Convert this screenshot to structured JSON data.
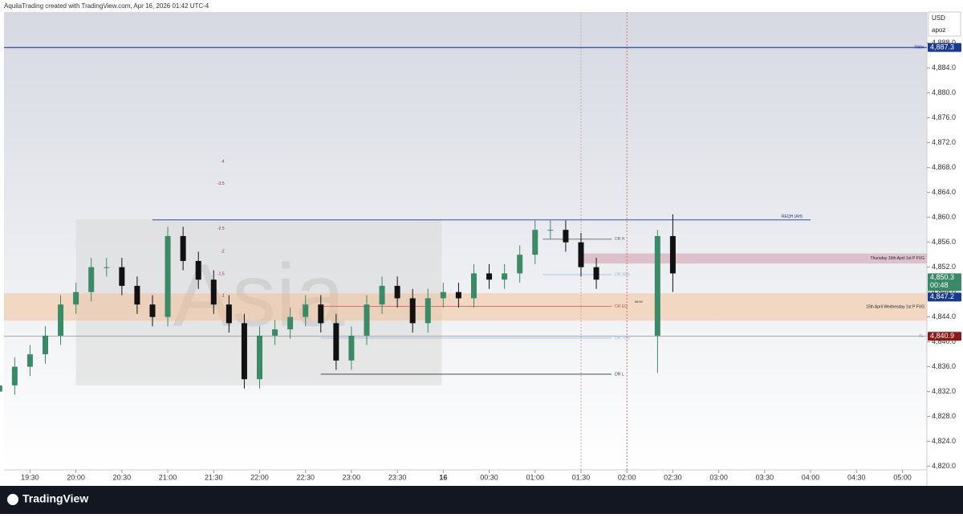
{
  "header": "AquilaTrading created with TradingView.com, Apr 16, 2026 01:42 UTC-4",
  "currency": "USD",
  "account": "apoz",
  "brand": "TradingView",
  "chart_data": {
    "type": "candlestick",
    "x": [
      "19:10",
      "19:20",
      "19:30",
      "19:40",
      "19:50",
      "20:00",
      "20:10",
      "20:20",
      "20:30",
      "20:40",
      "20:50",
      "21:00",
      "21:10",
      "21:20",
      "21:30",
      "21:40",
      "21:50",
      "22:00",
      "22:10",
      "22:20",
      "22:30",
      "22:40",
      "22:50",
      "23:00",
      "23:10",
      "23:20",
      "23:30",
      "23:40",
      "23:50",
      "00:00",
      "00:10",
      "00:20",
      "00:30",
      "00:40",
      "00:50",
      "01:00",
      "01:10",
      "01:20",
      "01:30",
      "01:40",
      "02:20",
      "02:30"
    ],
    "open": [
      4832,
      4833,
      4836,
      4838,
      4841,
      4846,
      4848,
      4852,
      4852,
      4849,
      4846,
      4844,
      4857,
      4853,
      4850,
      4846,
      4843,
      4834,
      4841,
      4842,
      4844,
      4846,
      4843,
      4837,
      4841,
      4846,
      4849,
      4847,
      4843,
      4847,
      4848,
      4847,
      4851,
      4850,
      4851,
      4854,
      4858,
      4858,
      4856,
      4852,
      4841,
      4857
    ],
    "high": [
      4834.5,
      4837.5,
      4839.5,
      4842.5,
      4847.5,
      4849.5,
      4853.5,
      4853.5,
      4853.5,
      4850.5,
      4847.5,
      4858.5,
      4858.5,
      4854.5,
      4851.5,
      4847.5,
      4844.5,
      4842.5,
      4843.5,
      4845.5,
      4847.5,
      4847.5,
      4844.5,
      4842.5,
      4847.5,
      4850.5,
      4850.5,
      4848.5,
      4848.5,
      4849.5,
      4849.5,
      4852.5,
      4852.5,
      4852.5,
      4855.5,
      4859.5,
      4859.5,
      4859.5,
      4857.5,
      4853.5,
      4858,
      4860.5
    ],
    "low": [
      4830.5,
      4831.5,
      4834.5,
      4836.5,
      4839.5,
      4844.5,
      4846.5,
      4850.5,
      4847.5,
      4844.5,
      4842.5,
      4842.5,
      4851.5,
      4848.5,
      4844.5,
      4841.5,
      4832.5,
      4832.5,
      4839.5,
      4840.5,
      4842.5,
      4841.5,
      4835.5,
      4835.5,
      4839.5,
      4844.5,
      4845.5,
      4841.5,
      4841.5,
      4845.5,
      4845.5,
      4845.5,
      4848.5,
      4848.5,
      4849.5,
      4852.5,
      4856.5,
      4854.5,
      4850.5,
      4848.5,
      4835,
      4848
    ],
    "close": [
      4833,
      4836,
      4838,
      4841,
      4846,
      4848,
      4852,
      4852,
      4849,
      4846,
      4844,
      4857,
      4853,
      4850,
      4846,
      4843,
      4834,
      4841,
      4842,
      4844,
      4846,
      4843,
      4837,
      4841,
      4846,
      4849,
      4847,
      4843,
      4847,
      4848,
      4847,
      4851,
      4850,
      4851,
      4854,
      4858,
      4858,
      4856,
      4852,
      4850,
      4857,
      4851
    ],
    "up_color": "#3b8a67",
    "down_color": "#111111",
    "xlim": [
      "19:13",
      "05:16"
    ],
    "xticks": [
      {
        "value": "19:30",
        "label": "19:30"
      },
      {
        "value": "20:00",
        "label": "20:00"
      },
      {
        "value": "20:30",
        "label": "20:30"
      },
      {
        "value": "21:00",
        "label": "21:00"
      },
      {
        "value": "21:30",
        "label": "21:30"
      },
      {
        "value": "22:00",
        "label": "22:00"
      },
      {
        "value": "22:30",
        "label": "22:30"
      },
      {
        "value": "23:00",
        "label": "23:00"
      },
      {
        "value": "23:30",
        "label": "23:30"
      },
      {
        "value": "00:00",
        "label": "16"
      },
      {
        "value": "00:30",
        "label": "00:30"
      },
      {
        "value": "01:00",
        "label": "01:00"
      },
      {
        "value": "01:30",
        "label": "01:30"
      },
      {
        "value": "02:00",
        "label": "02:00"
      },
      {
        "value": "02:30",
        "label": "02:30"
      },
      {
        "value": "03:00",
        "label": "03:00"
      },
      {
        "value": "03:30",
        "label": "03:30"
      },
      {
        "value": "04:00",
        "label": "04:00"
      },
      {
        "value": "04:30",
        "label": "04:30"
      },
      {
        "value": "05:00",
        "label": "05:00"
      }
    ],
    "ylim": [
      4817.5,
      4893
    ],
    "yticks": [
      {
        "value": 4820,
        "label": "4,820.0"
      },
      {
        "value": 4824,
        "label": "4,824.0"
      },
      {
        "value": 4828,
        "label": "4,828.0"
      },
      {
        "value": 4832,
        "label": "4,832.0"
      },
      {
        "value": 4836,
        "label": "4,836.0"
      },
      {
        "value": 4840,
        "label": "4,840.0"
      },
      {
        "value": 4844,
        "label": "4,844.0"
      },
      {
        "value": 4848,
        "label": "4,848.0"
      },
      {
        "value": 4852,
        "label": "4,852.0"
      },
      {
        "value": 4856,
        "label": "4,856.0"
      },
      {
        "value": 4860,
        "label": "4,860.0"
      },
      {
        "value": 4864,
        "label": "4,864.0"
      },
      {
        "value": 4868,
        "label": "4,868.0"
      },
      {
        "value": 4872,
        "label": "4,872.0"
      },
      {
        "value": 4876,
        "label": "4,876.0"
      },
      {
        "value": 4880,
        "label": "4,880.0"
      },
      {
        "value": 4884,
        "label": "4,884.0"
      },
      {
        "value": 4888,
        "label": "4,888.0"
      }
    ],
    "session": {
      "label": "Asia",
      "start": "20:00",
      "end": "23:59",
      "top": 4859.7,
      "bottom": 4833
    },
    "zones": [
      {
        "label": "Thursday 16th April 1st P FVG",
        "low": 4852.6,
        "high": 4854.2,
        "start": "01:30",
        "end": "05:16",
        "color": "#c98a9a"
      },
      {
        "label": "15th April Wednesday 1st P FVG",
        "low": 4843.4,
        "high": 4847.8,
        "start": "19:13",
        "end": "05:16",
        "color": "#f3b988"
      }
    ],
    "levels": [
      {
        "name": "PWH",
        "value": 4887.3,
        "start": "19:13",
        "end": "05:16",
        "color": "#1a3a8f"
      },
      {
        "name": "REQH (AH)",
        "value": 4859.6,
        "start": "20:50",
        "end": "04:00",
        "color": "#1a3a8f"
      },
      {
        "name": "AL",
        "value": 4840.9,
        "start": "19:13",
        "end": "05:16",
        "color": "#9a9a9a"
      },
      {
        "name": "DR H",
        "value": 4856.5,
        "start": "01:05",
        "end": "01:50",
        "color": "#666666"
      },
      {
        "name": "DR 25%",
        "value": 4850.8,
        "start": "01:05",
        "end": "01:50",
        "color": "#8fb4e8"
      },
      {
        "name": "DR EQ",
        "value": 4845.7,
        "start": "22:40",
        "end": "01:50",
        "color": "#d9534f"
      },
      {
        "name": "DR 75%",
        "value": 4840.6,
        "start": "22:40",
        "end": "01:50",
        "color": "#8fb4e8"
      },
      {
        "name": "DR L",
        "value": 4834.8,
        "start": "22:40",
        "end": "01:50",
        "color": "#333333"
      }
    ],
    "fib_labels": [
      {
        "label": "-4",
        "value": 4869.0
      },
      {
        "label": "-3.5",
        "value": 4865.4
      },
      {
        "label": "-2.5",
        "value": 4858.2
      },
      {
        "label": "-2",
        "value": 4854.5
      },
      {
        "label": "-1.5",
        "value": 4850.9
      },
      {
        "label": "-1",
        "value": 4847.4
      }
    ],
    "fib_x": "21:37",
    "markers": [
      {
        "label": "00:00",
        "value": 4846.4,
        "x": "02:05"
      }
    ],
    "vlines": [
      {
        "x": "01:30",
        "color": "#d9a0a0"
      },
      {
        "x": "02:00",
        "color": "#e07060"
      }
    ],
    "price_labels": [
      {
        "value": 4887.3,
        "label": "4,887.3",
        "color": "#1a3a8f"
      },
      {
        "value": 4850.3,
        "label": "4,850.3",
        "sub": "00:48",
        "color": "#3b8a67"
      },
      {
        "value": 4847.2,
        "label": "4,847.2",
        "color": "#1a3a8f"
      },
      {
        "value": 4840.9,
        "label": "4,840.9",
        "color": "#8b1a1a"
      }
    ]
  }
}
